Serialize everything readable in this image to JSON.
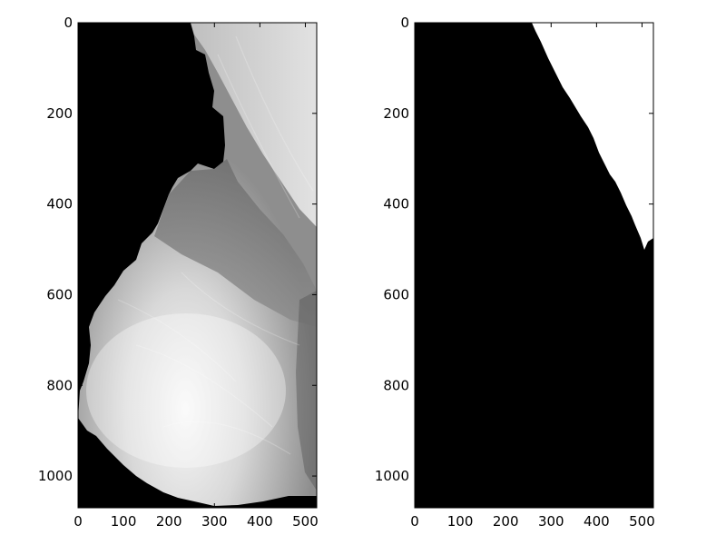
{
  "panels": [
    {
      "id": "left",
      "content": "grayscale mammogram image",
      "x_ticks": [
        "0",
        "100",
        "200",
        "300",
        "400",
        "500"
      ],
      "y_ticks": [
        "0",
        "200",
        "400",
        "600",
        "800",
        "1000"
      ],
      "x_range": [
        0,
        525
      ],
      "y_range": [
        1070,
        0
      ]
    },
    {
      "id": "right",
      "content": "binary mask image",
      "x_ticks": [
        "0",
        "100",
        "200",
        "300",
        "400",
        "500"
      ],
      "y_ticks": [
        "0",
        "200",
        "400",
        "600",
        "800",
        "1000"
      ],
      "x_range": [
        0,
        525
      ],
      "y_range": [
        1070,
        0
      ]
    }
  ],
  "colors": {
    "background": "#000000",
    "tissue_bright": "#f0f0f0",
    "mask_white": "#ffffff"
  }
}
